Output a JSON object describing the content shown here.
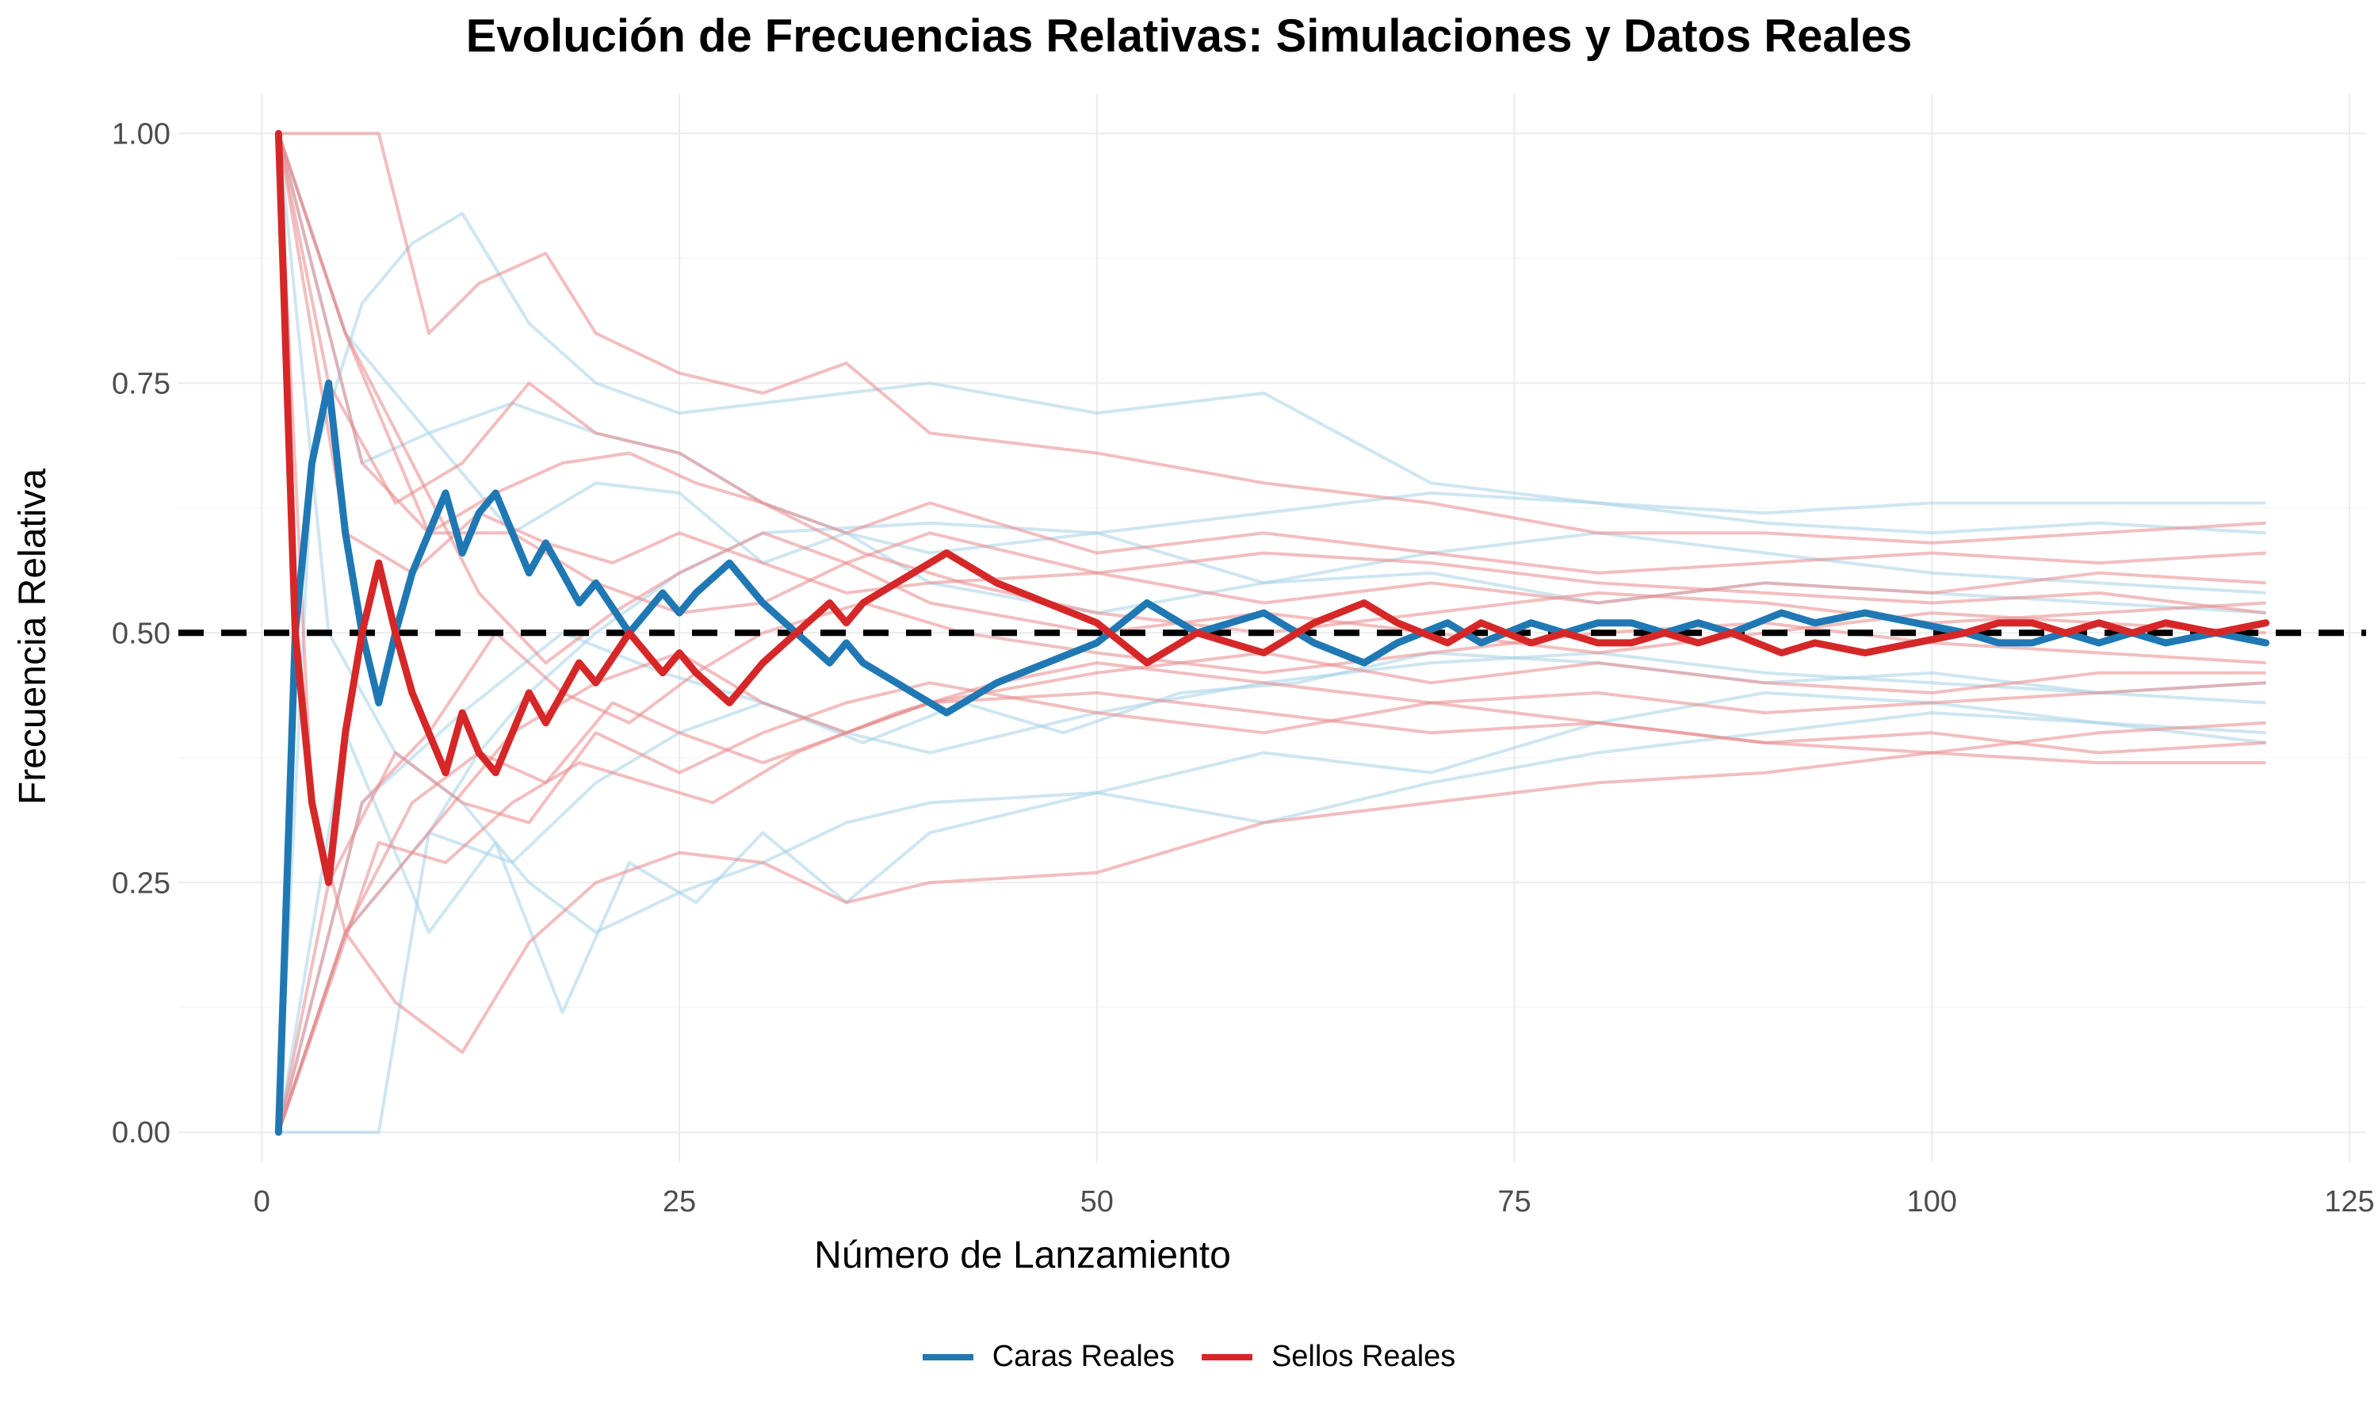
{
  "chart_data": {
    "type": "line",
    "title": "Evolución de Frecuencias Relativas: Simulaciones y Datos Reales",
    "xlabel": "Número de Lanzamiento",
    "ylabel": "Frecuencia Relativa",
    "xlim": [
      -5,
      126
    ],
    "ylim": [
      -0.03,
      1.04
    ],
    "x_ticks": [
      0,
      25,
      50,
      75,
      100,
      125
    ],
    "x_tick_labels": [
      "0",
      "25",
      "50",
      "75",
      "100",
      "125"
    ],
    "y_ticks": [
      0,
      0.25,
      0.5,
      0.75,
      1.0
    ],
    "y_tick_labels": [
      "0.00",
      "0.25",
      "0.50",
      "0.75",
      "1.00"
    ],
    "grid": true,
    "legend_position": "bottom",
    "reference_line": {
      "y": 0.5,
      "style": "dashed",
      "color": "#000000"
    },
    "colors": {
      "caras": "#1f78b4",
      "sellos": "#d62728",
      "sim_caras": "#a6d1e6",
      "sim_sellos": "#e8898a"
    },
    "series": [
      {
        "name": "Caras Reales",
        "color": "#1f78b4",
        "x": [
          1,
          2,
          3,
          4,
          5,
          6,
          7,
          8,
          9,
          10,
          11,
          12,
          13,
          14,
          15,
          16,
          17,
          18,
          19,
          20,
          22,
          24,
          25,
          26,
          28,
          30,
          32,
          34,
          35,
          36,
          38,
          41,
          44,
          47,
          50,
          53,
          56,
          58,
          60,
          63,
          66,
          68,
          71,
          73,
          76,
          78,
          80,
          82,
          84,
          86,
          88,
          91,
          93,
          96,
          99,
          102,
          104,
          106,
          108,
          110,
          112,
          114,
          117,
          120
        ],
        "values": [
          0.0,
          0.5,
          0.67,
          0.75,
          0.6,
          0.5,
          0.43,
          0.5,
          0.56,
          0.6,
          0.64,
          0.58,
          0.62,
          0.64,
          0.6,
          0.56,
          0.59,
          0.56,
          0.53,
          0.55,
          0.5,
          0.54,
          0.52,
          0.54,
          0.57,
          0.53,
          0.5,
          0.47,
          0.49,
          0.47,
          0.45,
          0.42,
          0.45,
          0.47,
          0.49,
          0.53,
          0.5,
          0.51,
          0.52,
          0.49,
          0.47,
          0.49,
          0.51,
          0.49,
          0.51,
          0.5,
          0.51,
          0.51,
          0.5,
          0.51,
          0.5,
          0.52,
          0.51,
          0.52,
          0.51,
          0.5,
          0.49,
          0.49,
          0.5,
          0.49,
          0.5,
          0.49,
          0.5,
          0.49
        ]
      },
      {
        "name": "Sellos Reales",
        "color": "#d62728",
        "x": [
          1,
          2,
          3,
          4,
          5,
          6,
          7,
          8,
          9,
          10,
          11,
          12,
          13,
          14,
          15,
          16,
          17,
          18,
          19,
          20,
          22,
          24,
          25,
          26,
          28,
          30,
          32,
          34,
          35,
          36,
          38,
          41,
          44,
          47,
          50,
          53,
          56,
          58,
          60,
          63,
          66,
          68,
          71,
          73,
          76,
          78,
          80,
          82,
          84,
          86,
          88,
          91,
          93,
          96,
          99,
          102,
          104,
          106,
          108,
          110,
          112,
          114,
          117,
          120
        ],
        "values": [
          1.0,
          0.5,
          0.33,
          0.25,
          0.4,
          0.5,
          0.57,
          0.5,
          0.44,
          0.4,
          0.36,
          0.42,
          0.38,
          0.36,
          0.4,
          0.44,
          0.41,
          0.44,
          0.47,
          0.45,
          0.5,
          0.46,
          0.48,
          0.46,
          0.43,
          0.47,
          0.5,
          0.53,
          0.51,
          0.53,
          0.55,
          0.58,
          0.55,
          0.53,
          0.51,
          0.47,
          0.5,
          0.49,
          0.48,
          0.51,
          0.53,
          0.51,
          0.49,
          0.51,
          0.49,
          0.5,
          0.49,
          0.49,
          0.5,
          0.49,
          0.5,
          0.48,
          0.49,
          0.48,
          0.49,
          0.5,
          0.51,
          0.51,
          0.5,
          0.51,
          0.5,
          0.51,
          0.5,
          0.51
        ]
      }
    ],
    "simulations_caras": [
      {
        "x": [
          1,
          4,
          7,
          10,
          13,
          16,
          20,
          25,
          30,
          40,
          50,
          60,
          70,
          80,
          90,
          100,
          110,
          120
        ],
        "values": [
          0.0,
          0.0,
          0.0,
          0.3,
          0.38,
          0.44,
          0.5,
          0.56,
          0.6,
          0.61,
          0.6,
          0.62,
          0.64,
          0.63,
          0.62,
          0.63,
          0.63,
          0.63
        ]
      },
      {
        "x": [
          1,
          3,
          6,
          9,
          12,
          16,
          20,
          25,
          30,
          40,
          50,
          60,
          70,
          80,
          90,
          100,
          110,
          120
        ],
        "values": [
          0.0,
          0.67,
          0.83,
          0.89,
          0.92,
          0.81,
          0.75,
          0.72,
          0.73,
          0.75,
          0.72,
          0.74,
          0.65,
          0.63,
          0.61,
          0.6,
          0.61,
          0.6
        ]
      },
      {
        "x": [
          1,
          5,
          10,
          14,
          18,
          22,
          26,
          30,
          35,
          40,
          50,
          60,
          70,
          80,
          90,
          100,
          110,
          120
        ],
        "values": [
          0.0,
          0.4,
          0.2,
          0.29,
          0.12,
          0.27,
          0.23,
          0.3,
          0.23,
          0.3,
          0.34,
          0.38,
          0.36,
          0.41,
          0.44,
          0.43,
          0.41,
          0.39
        ]
      },
      {
        "x": [
          1,
          4,
          8,
          12,
          16,
          20,
          25,
          30,
          35,
          40,
          50,
          60,
          70,
          80,
          90,
          100,
          110,
          120
        ],
        "values": [
          1.0,
          0.5,
          0.38,
          0.33,
          0.25,
          0.2,
          0.24,
          0.27,
          0.31,
          0.33,
          0.34,
          0.31,
          0.35,
          0.38,
          0.4,
          0.42,
          0.41,
          0.4
        ]
      },
      {
        "x": [
          1,
          6,
          10,
          15,
          20,
          25,
          30,
          35,
          40,
          50,
          60,
          70,
          80,
          90,
          100,
          110,
          120
        ],
        "values": [
          1.0,
          0.67,
          0.7,
          0.6,
          0.65,
          0.64,
          0.57,
          0.6,
          0.58,
          0.6,
          0.55,
          0.58,
          0.6,
          0.58,
          0.56,
          0.55,
          0.54
        ]
      },
      {
        "x": [
          1,
          5,
          10,
          15,
          20,
          25,
          30,
          35,
          40,
          50,
          60,
          70,
          80,
          90,
          100,
          110,
          120
        ],
        "values": [
          0.0,
          0.2,
          0.3,
          0.27,
          0.35,
          0.4,
          0.43,
          0.4,
          0.38,
          0.42,
          0.45,
          0.47,
          0.48,
          0.46,
          0.45,
          0.44,
          0.43
        ]
      },
      {
        "x": [
          1,
          5,
          10,
          15,
          20,
          25,
          30,
          35,
          40,
          50,
          60,
          70,
          80,
          90,
          100,
          110,
          120
        ],
        "values": [
          1.0,
          0.8,
          0.7,
          0.73,
          0.7,
          0.68,
          0.63,
          0.6,
          0.55,
          0.52,
          0.55,
          0.56,
          0.53,
          0.55,
          0.54,
          0.53,
          0.52
        ]
      },
      {
        "x": [
          1,
          6,
          12,
          18,
          24,
          30,
          36,
          42,
          48,
          55,
          62,
          70,
          80,
          90,
          100,
          110,
          120
        ],
        "values": [
          0.0,
          0.33,
          0.42,
          0.5,
          0.46,
          0.43,
          0.39,
          0.43,
          0.4,
          0.44,
          0.45,
          0.48,
          0.47,
          0.45,
          0.46,
          0.44,
          0.45
        ]
      }
    ],
    "simulations_sellos": [
      {
        "x": [
          1,
          3,
          7,
          10,
          13,
          17,
          20,
          25,
          30,
          35,
          40,
          50,
          60,
          70,
          80,
          90,
          100,
          110,
          120
        ],
        "values": [
          1.0,
          1.0,
          1.0,
          0.8,
          0.85,
          0.88,
          0.8,
          0.76,
          0.74,
          0.77,
          0.7,
          0.68,
          0.65,
          0.63,
          0.6,
          0.6,
          0.59,
          0.6,
          0.61
        ]
      },
      {
        "x": [
          1,
          3,
          5,
          8,
          12,
          16,
          20,
          25,
          30,
          35,
          40,
          50,
          60,
          70,
          80,
          90,
          100,
          110,
          120
        ],
        "values": [
          1.0,
          0.33,
          0.2,
          0.13,
          0.08,
          0.19,
          0.25,
          0.28,
          0.27,
          0.23,
          0.25,
          0.26,
          0.31,
          0.33,
          0.35,
          0.36,
          0.38,
          0.37,
          0.37
        ]
      },
      {
        "x": [
          1,
          4,
          8,
          12,
          16,
          20,
          25,
          30,
          35,
          40,
          50,
          60,
          70,
          80,
          90,
          100,
          110,
          120
        ],
        "values": [
          1.0,
          0.75,
          0.63,
          0.67,
          0.75,
          0.7,
          0.68,
          0.63,
          0.6,
          0.63,
          0.58,
          0.6,
          0.58,
          0.56,
          0.57,
          0.58,
          0.57,
          0.58
        ]
      },
      {
        "x": [
          1,
          4,
          8,
          12,
          16,
          20,
          25,
          30,
          35,
          40,
          50,
          60,
          70,
          80,
          90,
          100,
          110,
          120
        ],
        "values": [
          0.0,
          0.25,
          0.38,
          0.33,
          0.31,
          0.4,
          0.36,
          0.4,
          0.43,
          0.45,
          0.42,
          0.4,
          0.43,
          0.41,
          0.39,
          0.4,
          0.38,
          0.39
        ]
      },
      {
        "x": [
          1,
          5,
          9,
          13,
          17,
          21,
          25,
          30,
          35,
          40,
          50,
          60,
          70,
          80,
          90,
          100,
          110,
          120
        ],
        "values": [
          1.0,
          0.6,
          0.56,
          0.62,
          0.59,
          0.57,
          0.6,
          0.57,
          0.54,
          0.55,
          0.56,
          0.53,
          0.55,
          0.53,
          0.55,
          0.54,
          0.56,
          0.55
        ]
      },
      {
        "x": [
          1,
          5,
          9,
          13,
          17,
          21,
          25,
          30,
          35,
          40,
          50,
          60,
          70,
          80,
          90,
          100,
          110,
          120
        ],
        "values": [
          0.0,
          0.2,
          0.33,
          0.38,
          0.35,
          0.43,
          0.4,
          0.37,
          0.4,
          0.43,
          0.46,
          0.48,
          0.45,
          0.47,
          0.45,
          0.44,
          0.46,
          0.46
        ]
      },
      {
        "x": [
          1,
          6,
          10,
          14,
          18,
          22,
          26,
          30,
          36,
          42,
          50,
          60,
          70,
          80,
          90,
          100,
          110,
          120
        ],
        "values": [
          1.0,
          0.67,
          0.6,
          0.64,
          0.67,
          0.68,
          0.65,
          0.63,
          0.58,
          0.55,
          0.52,
          0.5,
          0.52,
          0.54,
          0.53,
          0.51,
          0.52,
          0.53
        ]
      },
      {
        "x": [
          1,
          6,
          10,
          14,
          18,
          22,
          26,
          30,
          36,
          42,
          50,
          60,
          70,
          80,
          90,
          100,
          110,
          120
        ],
        "values": [
          0.0,
          0.33,
          0.4,
          0.5,
          0.44,
          0.41,
          0.46,
          0.5,
          0.53,
          0.5,
          0.48,
          0.46,
          0.48,
          0.5,
          0.51,
          0.49,
          0.48,
          0.47
        ]
      },
      {
        "x": [
          1,
          5,
          9,
          13,
          17,
          21,
          25,
          30,
          35,
          40,
          50,
          60,
          70,
          80,
          90,
          100,
          110,
          120
        ],
        "values": [
          1.0,
          0.8,
          0.67,
          0.54,
          0.47,
          0.52,
          0.56,
          0.6,
          0.57,
          0.53,
          0.5,
          0.52,
          0.5,
          0.48,
          0.5,
          0.52,
          0.51,
          0.5
        ]
      },
      {
        "x": [
          1,
          7,
          11,
          15,
          19,
          23,
          27,
          32,
          38,
          44,
          50,
          60,
          70,
          80,
          90,
          100,
          110,
          120
        ],
        "values": [
          0.0,
          0.29,
          0.27,
          0.33,
          0.37,
          0.35,
          0.33,
          0.38,
          0.42,
          0.45,
          0.47,
          0.45,
          0.43,
          0.44,
          0.42,
          0.43,
          0.44,
          0.45
        ]
      },
      {
        "x": [
          1,
          5,
          10,
          15,
          20,
          25,
          30,
          35,
          40,
          50,
          60,
          70,
          80,
          90,
          100,
          110,
          120
        ],
        "values": [
          1.0,
          0.8,
          0.6,
          0.6,
          0.55,
          0.52,
          0.53,
          0.57,
          0.6,
          0.56,
          0.58,
          0.57,
          0.55,
          0.54,
          0.53,
          0.54,
          0.52
        ]
      },
      {
        "x": [
          1,
          5,
          10,
          15,
          20,
          25,
          30,
          35,
          40,
          50,
          60,
          70,
          80,
          90,
          100,
          110,
          120
        ],
        "values": [
          0.0,
          0.2,
          0.3,
          0.4,
          0.45,
          0.48,
          0.43,
          0.4,
          0.43,
          0.44,
          0.42,
          0.4,
          0.41,
          0.39,
          0.38,
          0.4,
          0.41
        ]
      }
    ]
  },
  "legend": {
    "items": [
      {
        "label": "Caras Reales",
        "color": "#1f78b4"
      },
      {
        "label": "Sellos Reales",
        "color": "#d62728"
      }
    ]
  }
}
